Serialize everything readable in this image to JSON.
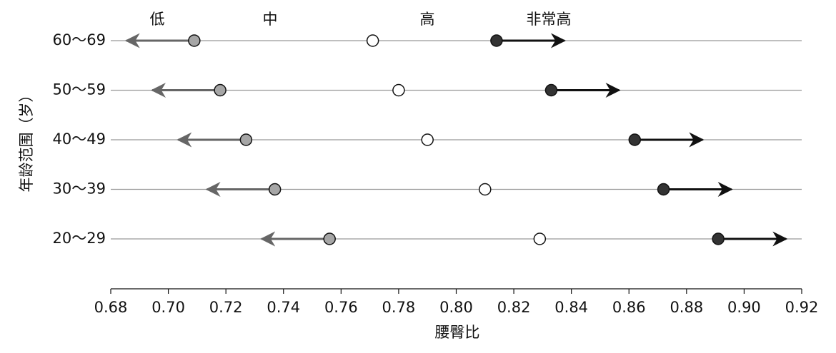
{
  "chart_data": {
    "type": "dot-arrow",
    "zone_labels": [
      "低",
      "中",
      "高",
      "非常高"
    ],
    "categories": [
      "60～69",
      "50～59",
      "40～49",
      "30～39",
      "20～29"
    ],
    "series": [
      {
        "color": "#a6a6a6",
        "values": [
          0.709,
          0.718,
          0.727,
          0.737,
          0.756
        ]
      },
      {
        "color": "#ffffff",
        "values": [
          0.771,
          0.78,
          0.79,
          0.81,
          0.829
        ]
      },
      {
        "color": "#333333",
        "values": [
          0.814,
          0.833,
          0.862,
          0.872,
          0.891
        ]
      }
    ],
    "xlabel": "腰臀比",
    "ylabel": "年龄范围（岁）",
    "xlim": [
      0.68,
      0.92
    ],
    "xticks": [
      {
        "value": 0.68,
        "label": "0.68"
      },
      {
        "value": 0.7,
        "label": "0.70"
      },
      {
        "value": 0.72,
        "label": "0.72"
      },
      {
        "value": 0.74,
        "label": "0.74"
      },
      {
        "value": 0.76,
        "label": "0.76"
      },
      {
        "value": 0.78,
        "label": "0.78"
      },
      {
        "value": 0.8,
        "label": "0.80"
      },
      {
        "value": 0.82,
        "label": "0.82"
      },
      {
        "value": 0.84,
        "label": "0.84"
      },
      {
        "value": 0.86,
        "label": "0.86"
      },
      {
        "value": 0.88,
        "label": "0.88"
      },
      {
        "value": 0.9,
        "label": "0.90"
      },
      {
        "value": 0.92,
        "label": "0.92"
      }
    ]
  }
}
